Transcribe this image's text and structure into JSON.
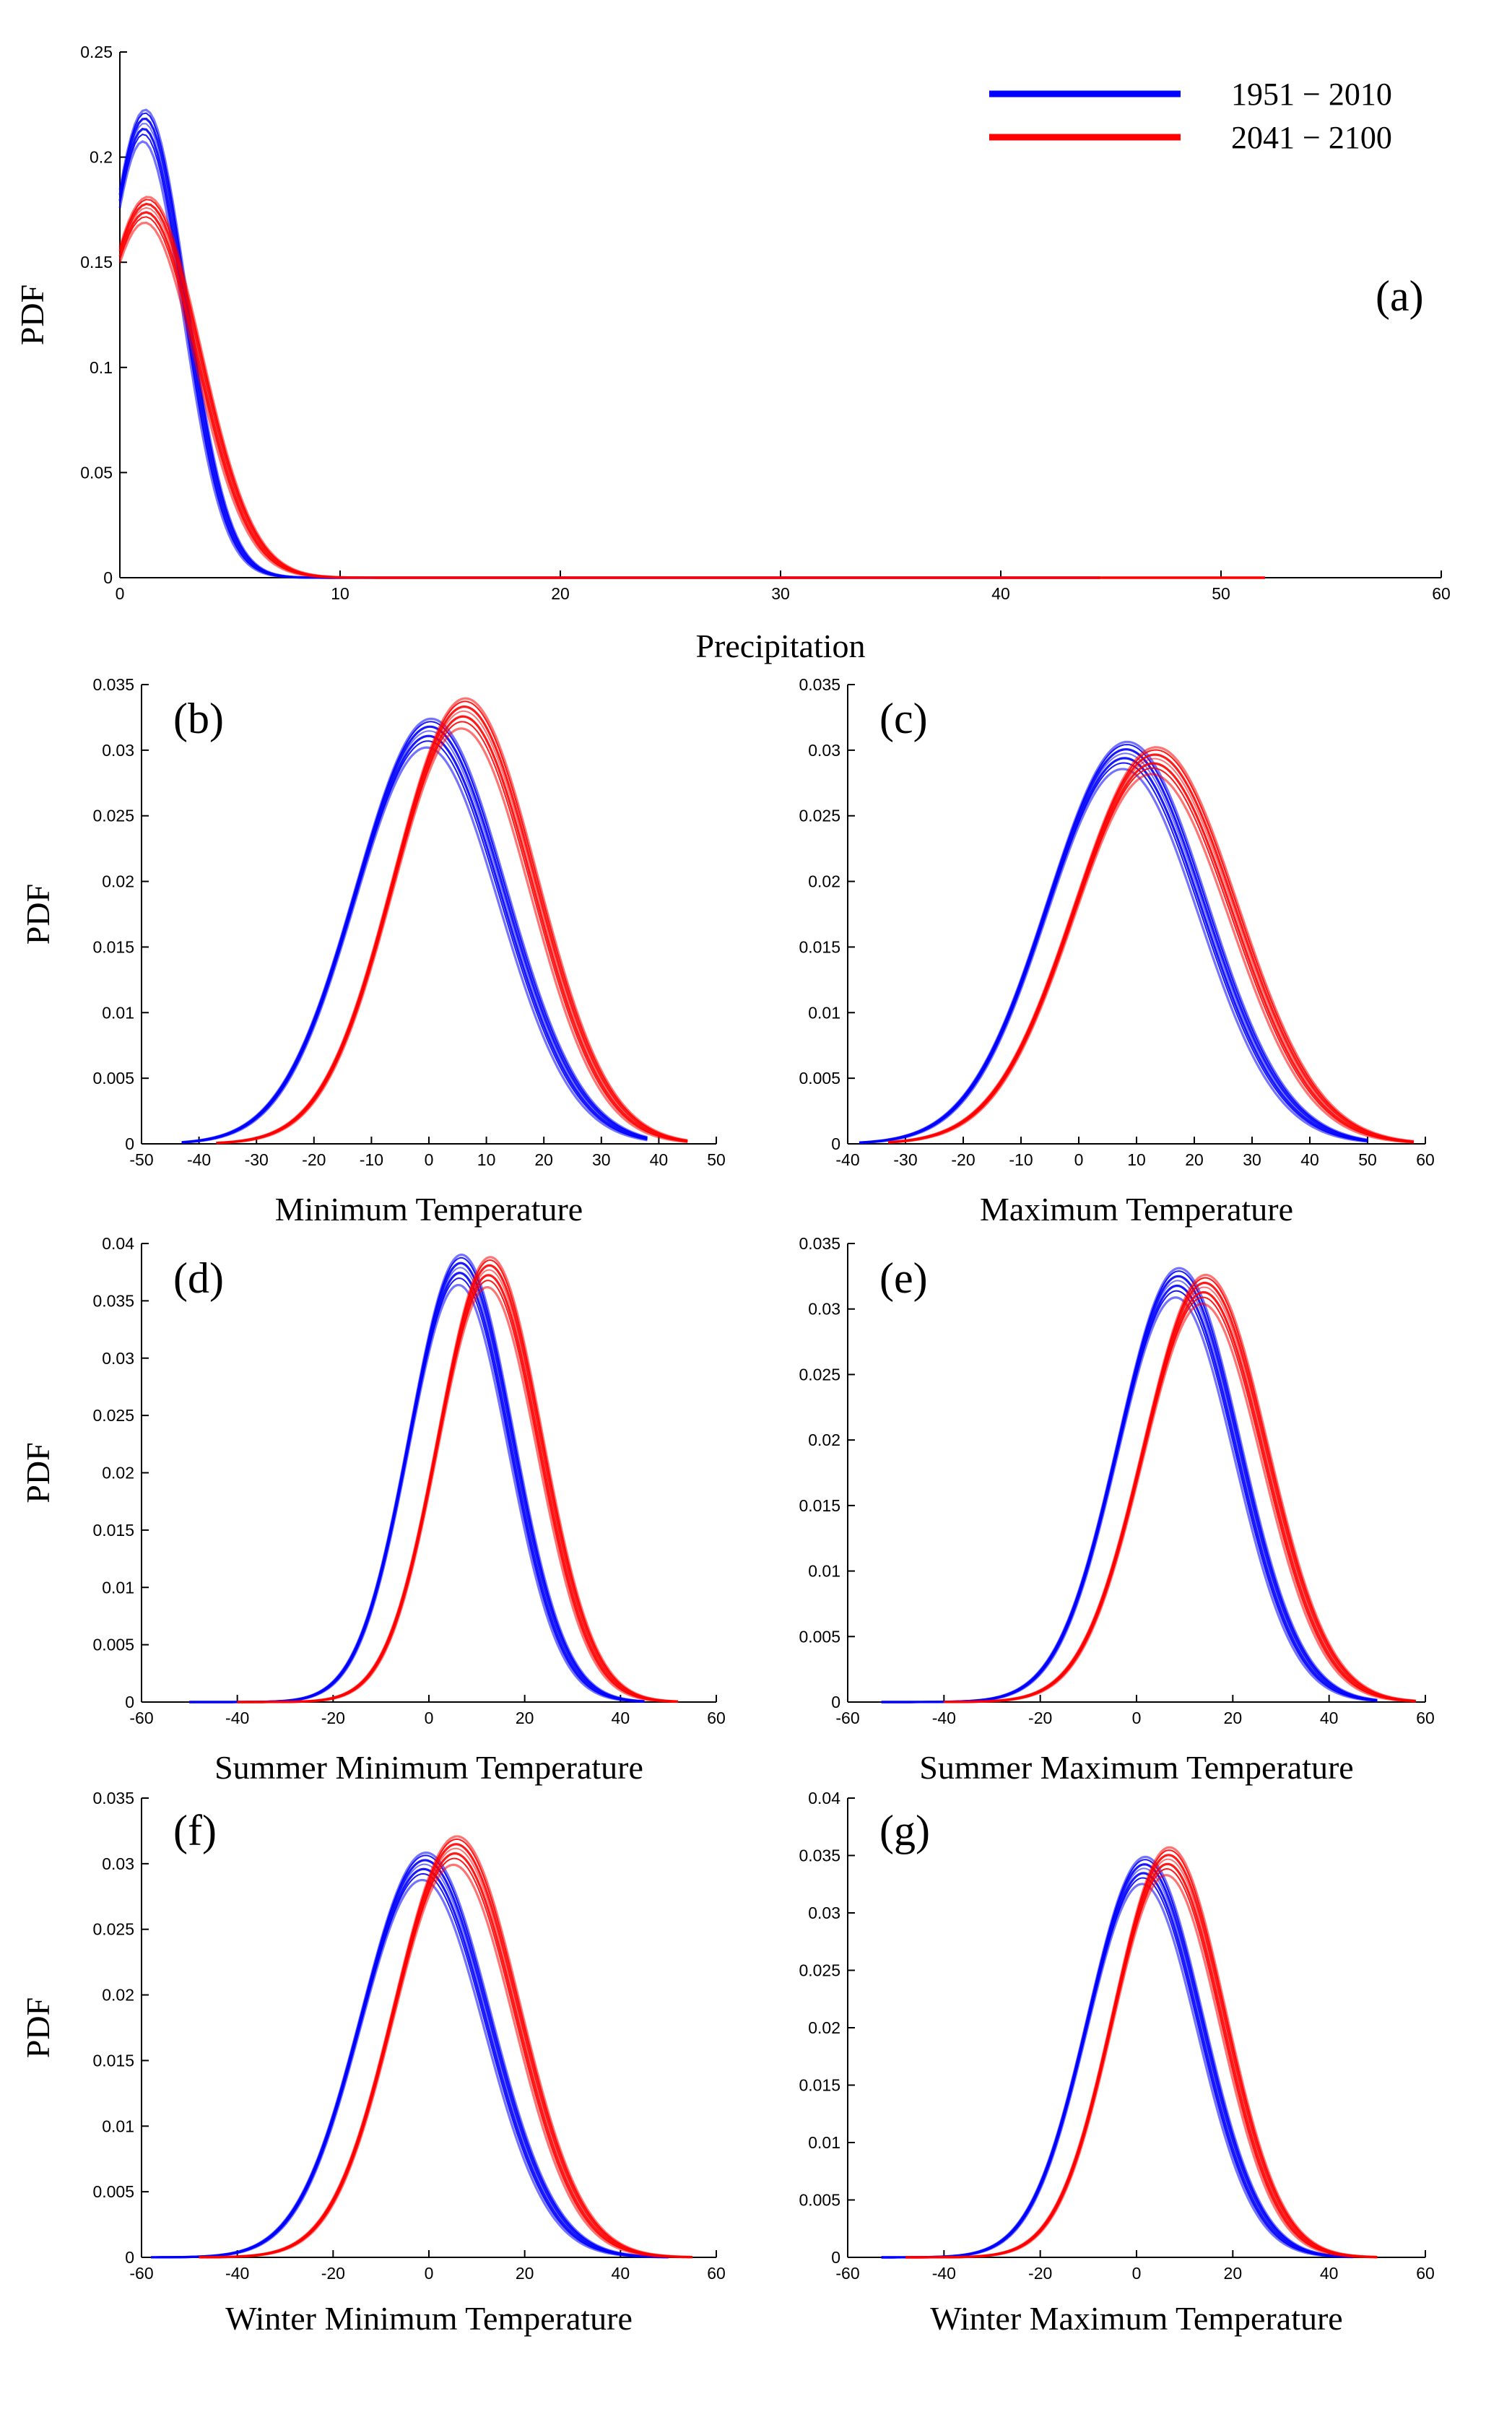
{
  "figure": {
    "legend": [
      {
        "name": "1951 − 2010",
        "color": "#0000ff"
      },
      {
        "name": "2041 − 2100",
        "color": "#ff0000"
      }
    ]
  },
  "chart_data": [
    {
      "panel": "(a)",
      "type": "line",
      "title": "",
      "xlabel": "Precipitation",
      "ylabel": "PDF",
      "xlim": [
        0,
        60
      ],
      "ylim": [
        0,
        0.25
      ],
      "xticks": [
        "0",
        "10",
        "20",
        "30",
        "40",
        "50",
        "60"
      ],
      "yticks": [
        "0",
        "0.05",
        "0.1",
        "0.15",
        "0.2",
        "0.25"
      ],
      "series": [
        {
          "name": "1951 − 2010",
          "color": "#0000ff",
          "mean": 1.1,
          "sd": 1.85,
          "range": [
            0,
            44.5
          ],
          "peak": 0.215
        },
        {
          "name": "2041 − 2100",
          "color": "#ff0000",
          "mean": 1.2,
          "sd": 2.35,
          "range": [
            0,
            52
          ],
          "peak": 0.175
        }
      ],
      "legend": "top-right"
    },
    {
      "panel": "(b)",
      "type": "line",
      "title": "",
      "xlabel": "Minimum  Temperature",
      "ylabel": "PDF",
      "xlim": [
        -50,
        50
      ],
      "ylim": [
        0,
        0.035
      ],
      "xticks": [
        "-50",
        "-40",
        "-30",
        "-20",
        "-10",
        "0",
        "10",
        "20",
        "30",
        "40",
        "50"
      ],
      "yticks": [
        "0",
        "0.005",
        "0.01",
        "0.015",
        "0.02",
        "0.025",
        "0.03",
        "0.035"
      ],
      "series": [
        {
          "name": "1951 − 2010",
          "color": "#0000ff",
          "mean": 0,
          "sd": 12.8,
          "range": [
            -43,
            38
          ],
          "peak": 0.0313
        },
        {
          "name": "2041 − 2100",
          "color": "#ff0000",
          "mean": 6,
          "sd": 12.2,
          "range": [
            -37,
            45
          ],
          "peak": 0.0328
        }
      ]
    },
    {
      "panel": "(c)",
      "type": "line",
      "title": "",
      "xlabel": "Maximum  Temperature",
      "ylabel": "",
      "xlim": [
        -40,
        60
      ],
      "ylim": [
        0,
        0.035
      ],
      "xticks": [
        "-40",
        "-30",
        "-20",
        "-10",
        "0",
        "10",
        "20",
        "30",
        "40",
        "50",
        "60"
      ],
      "yticks": [
        "0",
        "0.005",
        "0.01",
        "0.015",
        "0.02",
        "0.025",
        "0.03",
        "0.035"
      ],
      "series": [
        {
          "name": "1951 − 2010",
          "color": "#0000ff",
          "mean": 8,
          "sd": 13.5,
          "range": [
            -38,
            50
          ],
          "peak": 0.0296
        },
        {
          "name": "2041 − 2100",
          "color": "#ff0000",
          "mean": 13,
          "sd": 13.8,
          "range": [
            -33,
            58
          ],
          "peak": 0.0292
        }
      ]
    },
    {
      "panel": "(d)",
      "type": "line",
      "title": "",
      "xlabel": "Summer Minimum  Temperature",
      "ylabel": "PDF",
      "xlim": [
        -60,
        60
      ],
      "ylim": [
        0,
        0.04
      ],
      "xticks": [
        "-60",
        "-40",
        "-20",
        "0",
        "20",
        "40",
        "60"
      ],
      "yticks": [
        "0",
        "0.005",
        "0.01",
        "0.015",
        "0.02",
        "0.025",
        "0.03",
        "0.035",
        "0.04"
      ],
      "series": [
        {
          "name": "1951 − 2010",
          "color": "#0000ff",
          "mean": 6.5,
          "sd": 10.6,
          "range": [
            -50,
            45
          ],
          "peak": 0.0377
        },
        {
          "name": "2041 − 2100",
          "color": "#ff0000",
          "mean": 12.5,
          "sd": 10.6,
          "range": [
            -40,
            52
          ],
          "peak": 0.0375
        }
      ]
    },
    {
      "panel": "(e)",
      "type": "line",
      "title": "",
      "xlabel": "Summer Maximum  Temperature",
      "ylabel": "",
      "xlim": [
        -60,
        60
      ],
      "ylim": [
        0,
        0.035
      ],
      "xticks": [
        "-60",
        "-40",
        "-20",
        "0",
        "20",
        "40",
        "60"
      ],
      "yticks": [
        "0",
        "0.005",
        "0.01",
        "0.015",
        "0.02",
        "0.025",
        "0.03",
        "0.035"
      ],
      "series": [
        {
          "name": "1951 − 2010",
          "color": "#0000ff",
          "mean": 8.5,
          "sd": 12.4,
          "range": [
            -53,
            50
          ],
          "peak": 0.032
        },
        {
          "name": "2041 − 2100",
          "color": "#ff0000",
          "mean": 14,
          "sd": 12.6,
          "range": [
            -40,
            58
          ],
          "peak": 0.0315
        }
      ]
    },
    {
      "panel": "(f)",
      "type": "line",
      "title": "",
      "xlabel": "Winter Minimum  Temperature",
      "ylabel": "PDF",
      "xlim": [
        -60,
        60
      ],
      "ylim": [
        0,
        0.035
      ],
      "xticks": [
        "-60",
        "-40",
        "-20",
        "0",
        "20",
        "40",
        "60"
      ],
      "yticks": [
        "0",
        "0.005",
        "0.01",
        "0.015",
        "0.02",
        "0.025",
        "0.03",
        "0.035"
      ],
      "series": [
        {
          "name": "1951 − 2010",
          "color": "#0000ff",
          "mean": -1,
          "sd": 13.2,
          "range": [
            -58,
            50
          ],
          "peak": 0.0298
        },
        {
          "name": "2041 − 2100",
          "color": "#ff0000",
          "mean": 5.5,
          "sd": 12.8,
          "range": [
            -48,
            55
          ],
          "peak": 0.031
        }
      ]
    },
    {
      "panel": "(g)",
      "type": "line",
      "title": "",
      "xlabel": "Winter Maximum  Temperature",
      "ylabel": "",
      "xlim": [
        -60,
        60
      ],
      "ylim": [
        0,
        0.04
      ],
      "xticks": [
        "-60",
        "-40",
        "-20",
        "0",
        "20",
        "40",
        "60"
      ],
      "yticks": [
        "0",
        "0.005",
        "0.01",
        "0.015",
        "0.02",
        "0.025",
        "0.03",
        "0.035",
        "0.04"
      ],
      "series": [
        {
          "name": "1951 − 2010",
          "color": "#0000ff",
          "mean": 1.5,
          "sd": 11.7,
          "range": [
            -53,
            45
          ],
          "peak": 0.0337
        },
        {
          "name": "2041 − 2100",
          "color": "#ff0000",
          "mean": 6.5,
          "sd": 11.4,
          "range": [
            -48,
            50
          ],
          "peak": 0.0345
        }
      ]
    }
  ]
}
